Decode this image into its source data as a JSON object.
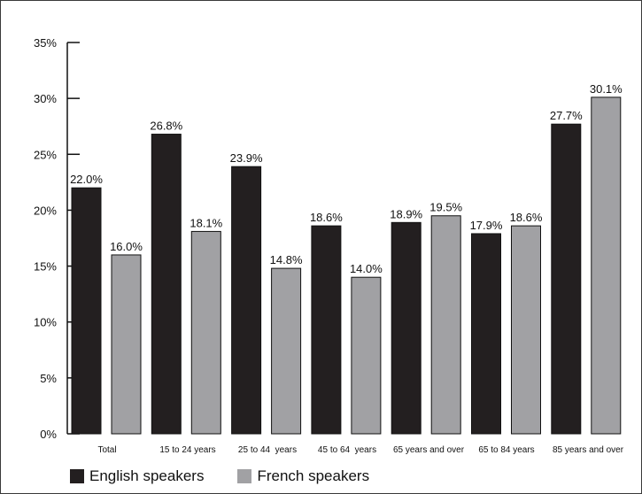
{
  "chart_data": {
    "type": "bar",
    "categories": [
      "Total",
      "15 to 24 years",
      "25 to 44  years",
      "45 to 64  years",
      "65 years and over",
      "65 to 84 years",
      "85 years and over"
    ],
    "series": [
      {
        "name": "English speakers",
        "color": "#231f20",
        "values": [
          22.0,
          26.8,
          23.9,
          18.6,
          18.9,
          17.9,
          27.7
        ],
        "labels": [
          "22.0%",
          "26.8%",
          "23.9%",
          "18.6%",
          "18.9%",
          "17.9%",
          "27.7%"
        ]
      },
      {
        "name": "French speakers",
        "color": "#a1a1a4",
        "values": [
          16.0,
          18.1,
          14.8,
          14.0,
          19.5,
          18.6,
          30.1
        ],
        "labels": [
          "16.0%",
          "18.1%",
          "14.8%",
          "14.0%",
          "19.5%",
          "18.6%",
          "30.1%"
        ]
      }
    ],
    "title": "",
    "xlabel": "",
    "ylabel": "",
    "ylim": [
      0,
      35
    ],
    "yticks": [
      0,
      5,
      10,
      15,
      20,
      25,
      30,
      35
    ],
    "ytick_labels": [
      "0%",
      "5%",
      "10%",
      "15%",
      "20%",
      "25%",
      "30%",
      "35%"
    ],
    "grid": false,
    "legend_position": "bottom-left"
  }
}
